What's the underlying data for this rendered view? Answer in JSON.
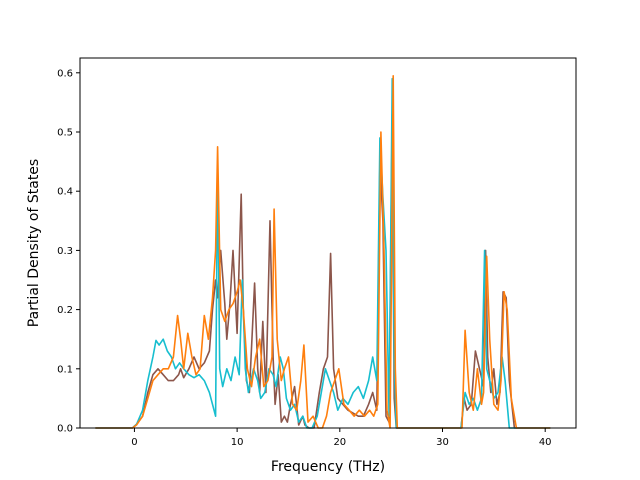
{
  "chart_data": {
    "type": "line",
    "title": "",
    "xlabel": "Frequency (THz)",
    "ylabel": "Partial Density of States",
    "xlim": [
      -5.3,
      43
    ],
    "ylim": [
      0,
      0.625
    ],
    "xticks": [
      0,
      10,
      20,
      30,
      40
    ],
    "yticks": [
      0.0,
      0.1,
      0.2,
      0.3,
      0.4,
      0.5,
      0.6
    ],
    "xtick_labels": [
      "0",
      "10",
      "20",
      "30",
      "40"
    ],
    "ytick_labels": [
      "0.0",
      "0.1",
      "0.2",
      "0.3",
      "0.4",
      "0.5",
      "0.6"
    ],
    "grid": false,
    "legend": "none",
    "series": [
      {
        "color": "#8c564b",
        "x": [
          -3.8,
          -0.2,
          0.2,
          0.8,
          1.3,
          1.8,
          2.3,
          2.8,
          3.3,
          3.8,
          4.3,
          4.5,
          4.8,
          5.3,
          5.8,
          6.3,
          6.8,
          7.3,
          7.6,
          7.9,
          8.1,
          8.4,
          8.8,
          9.0,
          9.3,
          9.6,
          10.0,
          10.4,
          10.6,
          10.9,
          11.2,
          11.7,
          12.0,
          12.2,
          12.5,
          12.8,
          13.2,
          13.5,
          13.7,
          14.0,
          14.3,
          14.6,
          14.9,
          15.2,
          15.6,
          16.0,
          16.4,
          16.6,
          17.0,
          17.5,
          18.0,
          18.4,
          18.8,
          19.1,
          19.4,
          19.8,
          20.3,
          20.8,
          21.3,
          21.8,
          22.3,
          22.8,
          23.2,
          23.6,
          23.9,
          24.2,
          24.5,
          24.8,
          25.1,
          25.3,
          25.5,
          25.8,
          26.3,
          31.3,
          31.8,
          32.1,
          32.4,
          32.8,
          33.2,
          33.6,
          34.0,
          34.2,
          34.4,
          34.7,
          35.0,
          35.3,
          35.6,
          35.9,
          36.2,
          36.5,
          37.0,
          40.5
        ],
        "y": [
          0.0,
          0.0,
          0.006,
          0.02,
          0.06,
          0.09,
          0.1,
          0.09,
          0.08,
          0.08,
          0.09,
          0.1,
          0.085,
          0.1,
          0.12,
          0.1,
          0.11,
          0.13,
          0.2,
          0.25,
          0.22,
          0.3,
          0.21,
          0.15,
          0.21,
          0.3,
          0.16,
          0.395,
          0.2,
          0.08,
          0.06,
          0.245,
          0.1,
          0.06,
          0.18,
          0.06,
          0.35,
          0.12,
          0.04,
          0.09,
          0.01,
          0.02,
          0.01,
          0.04,
          0.07,
          0.005,
          0.02,
          0.005,
          0.0,
          0.0,
          0.06,
          0.1,
          0.12,
          0.295,
          0.1,
          0.05,
          0.04,
          0.03,
          0.025,
          0.02,
          0.02,
          0.04,
          0.06,
          0.03,
          0.45,
          0.35,
          0.02,
          0.01,
          0.53,
          0.05,
          0.0,
          0.0,
          0.0,
          0.0,
          0.0,
          0.05,
          0.03,
          0.04,
          0.13,
          0.1,
          0.07,
          0.3,
          0.12,
          0.06,
          0.1,
          0.04,
          0.06,
          0.23,
          0.22,
          0.08,
          0.0,
          0.0
        ]
      },
      {
        "color": "#17becf",
        "x": [
          -3.8,
          -0.2,
          0.2,
          0.8,
          1.3,
          1.8,
          2.1,
          2.4,
          2.8,
          3.2,
          3.6,
          4.0,
          4.4,
          4.8,
          5.3,
          5.8,
          6.3,
          6.8,
          7.3,
          7.6,
          7.9,
          8.1,
          8.3,
          8.6,
          9.0,
          9.4,
          9.8,
          10.2,
          10.5,
          10.8,
          11.1,
          11.6,
          12.0,
          12.3,
          12.7,
          13.1,
          13.5,
          13.8,
          14.2,
          14.5,
          14.8,
          15.2,
          15.6,
          16.0,
          16.4,
          16.8,
          17.3,
          17.8,
          18.2,
          18.6,
          19.0,
          19.4,
          19.8,
          20.3,
          20.8,
          21.3,
          21.8,
          22.3,
          22.8,
          23.2,
          23.6,
          23.9,
          24.2,
          24.5,
          24.8,
          25.1,
          25.3,
          25.5,
          25.8,
          26.3,
          31.3,
          31.8,
          32.2,
          32.6,
          33.0,
          33.4,
          33.8,
          34.1,
          34.3,
          34.6,
          35.0,
          35.4,
          35.8,
          36.1,
          36.5,
          37.0,
          40.5
        ],
        "y": [
          0.0,
          0.0,
          0.006,
          0.03,
          0.08,
          0.12,
          0.148,
          0.14,
          0.15,
          0.13,
          0.12,
          0.1,
          0.11,
          0.1,
          0.09,
          0.085,
          0.09,
          0.08,
          0.06,
          0.04,
          0.02,
          0.45,
          0.1,
          0.07,
          0.1,
          0.08,
          0.12,
          0.09,
          0.25,
          0.1,
          0.06,
          0.1,
          0.08,
          0.05,
          0.06,
          0.1,
          0.09,
          0.07,
          0.12,
          0.1,
          0.05,
          0.03,
          0.04,
          0.01,
          0.02,
          0.0,
          0.0,
          0.02,
          0.06,
          0.1,
          0.08,
          0.06,
          0.03,
          0.05,
          0.04,
          0.06,
          0.07,
          0.05,
          0.08,
          0.12,
          0.08,
          0.49,
          0.39,
          0.3,
          0.02,
          0.59,
          0.12,
          0.0,
          0.0,
          0.0,
          0.0,
          0.0,
          0.06,
          0.04,
          0.05,
          0.03,
          0.05,
          0.3,
          0.1,
          0.08,
          0.05,
          0.06,
          0.12,
          0.08,
          0.0,
          0.0,
          0.0
        ]
      },
      {
        "color": "#ff7f0e",
        "x": [
          -3.8,
          -0.2,
          0.2,
          0.8,
          1.3,
          1.8,
          2.3,
          2.8,
          3.3,
          3.8,
          4.2,
          4.5,
          4.8,
          5.2,
          5.6,
          6.0,
          6.4,
          6.8,
          7.2,
          7.6,
          7.9,
          8.1,
          8.4,
          8.8,
          9.2,
          9.6,
          10.0,
          10.3,
          10.6,
          11.0,
          11.4,
          11.8,
          12.2,
          12.6,
          13.0,
          13.4,
          13.6,
          13.9,
          14.3,
          14.6,
          15.0,
          15.4,
          15.8,
          16.2,
          16.5,
          16.9,
          17.4,
          17.9,
          18.3,
          18.7,
          19.1,
          19.5,
          19.9,
          20.4,
          20.9,
          21.4,
          21.9,
          22.4,
          22.9,
          23.3,
          23.7,
          24.0,
          24.3,
          24.6,
          24.9,
          25.2,
          25.4,
          25.6,
          25.9,
          26.4,
          31.4,
          31.9,
          32.2,
          32.6,
          33.0,
          33.4,
          33.8,
          34.0,
          34.3,
          34.6,
          35.0,
          35.4,
          35.7,
          36.0,
          36.3,
          36.7,
          37.2,
          40.5
        ],
        "y": [
          0.0,
          0.0,
          0.005,
          0.02,
          0.05,
          0.08,
          0.09,
          0.1,
          0.1,
          0.12,
          0.19,
          0.15,
          0.1,
          0.16,
          0.12,
          0.09,
          0.1,
          0.19,
          0.15,
          0.22,
          0.3,
          0.475,
          0.2,
          0.18,
          0.2,
          0.21,
          0.23,
          0.25,
          0.2,
          0.1,
          0.07,
          0.12,
          0.15,
          0.07,
          0.08,
          0.12,
          0.37,
          0.15,
          0.08,
          0.1,
          0.12,
          0.04,
          0.03,
          0.08,
          0.14,
          0.01,
          0.02,
          0.0,
          0.0,
          0.02,
          0.06,
          0.08,
          0.1,
          0.04,
          0.03,
          0.02,
          0.03,
          0.02,
          0.03,
          0.02,
          0.04,
          0.5,
          0.3,
          0.03,
          0.0,
          0.595,
          0.1,
          0.0,
          0.0,
          0.0,
          0.0,
          0.0,
          0.165,
          0.06,
          0.03,
          0.1,
          0.04,
          0.06,
          0.29,
          0.15,
          0.04,
          0.03,
          0.08,
          0.23,
          0.2,
          0.05,
          0.0,
          0.0
        ]
      }
    ]
  }
}
